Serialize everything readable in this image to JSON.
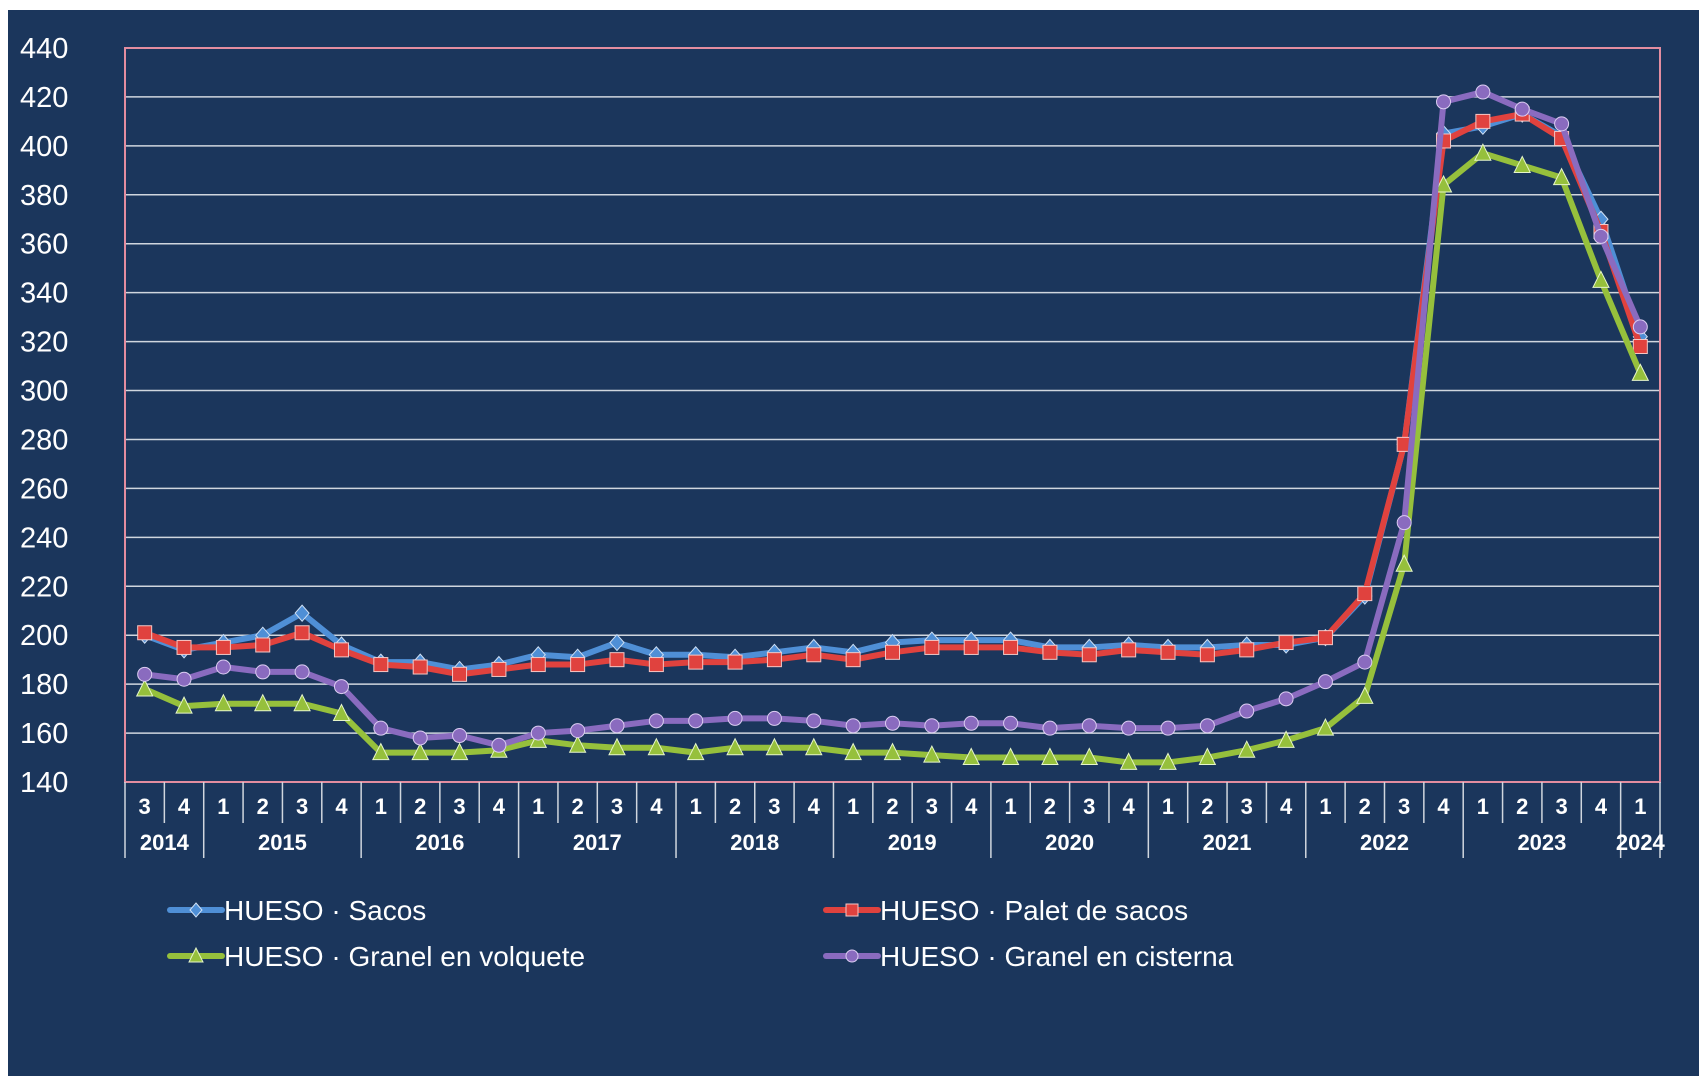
{
  "chart_data": {
    "type": "line",
    "title": "",
    "xlabel": "",
    "ylabel": "",
    "ylim": [
      140,
      440
    ],
    "yticks": [
      140,
      160,
      180,
      200,
      220,
      240,
      260,
      280,
      300,
      320,
      340,
      360,
      380,
      400,
      420,
      440
    ],
    "grid": true,
    "legend_position": "bottom",
    "x": [
      "2014-3",
      "2014-4",
      "2015-1",
      "2015-2",
      "2015-3",
      "2015-4",
      "2016-1",
      "2016-2",
      "2016-3",
      "2016-4",
      "2017-1",
      "2017-2",
      "2017-3",
      "2017-4",
      "2018-1",
      "2018-2",
      "2018-3",
      "2018-4",
      "2019-1",
      "2019-2",
      "2019-3",
      "2019-4",
      "2020-1",
      "2020-2",
      "2020-3",
      "2020-4",
      "2021-1",
      "2021-2",
      "2021-3",
      "2021-4",
      "2022-1",
      "2022-2",
      "2022-3",
      "2022-4",
      "2023-1",
      "2023-2",
      "2023-3",
      "2023-4",
      "2024-1"
    ],
    "quarter_labels": [
      "3",
      "4",
      "1",
      "2",
      "3",
      "4",
      "1",
      "2",
      "3",
      "4",
      "1",
      "2",
      "3",
      "4",
      "1",
      "2",
      "3",
      "4",
      "1",
      "2",
      "3",
      "4",
      "1",
      "2",
      "3",
      "4",
      "1",
      "2",
      "3",
      "4",
      "1",
      "2",
      "3",
      "4",
      "1",
      "2",
      "3",
      "4",
      "1"
    ],
    "year_groups": [
      {
        "year": "2014",
        "count": 2
      },
      {
        "year": "2015",
        "count": 4
      },
      {
        "year": "2016",
        "count": 4
      },
      {
        "year": "2017",
        "count": 4
      },
      {
        "year": "2018",
        "count": 4
      },
      {
        "year": "2019",
        "count": 4
      },
      {
        "year": "2020",
        "count": 4
      },
      {
        "year": "2021",
        "count": 4
      },
      {
        "year": "2022",
        "count": 4
      },
      {
        "year": "2023",
        "count": 4
      },
      {
        "year": "2024",
        "count": 1
      }
    ],
    "series": [
      {
        "name": "HUESO · Sacos",
        "color": "#4f8fd6",
        "marker": "diamond",
        "values": [
          200,
          194,
          197,
          200,
          209,
          196,
          189,
          189,
          186,
          188,
          192,
          191,
          197,
          192,
          192,
          191,
          193,
          195,
          193,
          197,
          198,
          198,
          198,
          195,
          195,
          196,
          195,
          195,
          196,
          196,
          199,
          216,
          278,
          405,
          408,
          413,
          404,
          370,
          322
        ]
      },
      {
        "name": "HUESO · Palet de sacos",
        "color": "#e0423e",
        "marker": "square",
        "values": [
          201,
          195,
          195,
          196,
          201,
          194,
          188,
          187,
          184,
          186,
          188,
          188,
          190,
          188,
          189,
          189,
          190,
          192,
          190,
          193,
          195,
          195,
          195,
          193,
          192,
          194,
          193,
          192,
          194,
          197,
          199,
          217,
          278,
          402,
          410,
          413,
          403,
          365,
          318
        ]
      },
      {
        "name": "HUESO · Granel en volquete",
        "color": "#96c03c",
        "marker": "triangle",
        "values": [
          178,
          171,
          172,
          172,
          172,
          168,
          152,
          152,
          152,
          153,
          157,
          155,
          154,
          154,
          152,
          154,
          154,
          154,
          152,
          152,
          151,
          150,
          150,
          150,
          150,
          148,
          148,
          150,
          153,
          157,
          162,
          175,
          229,
          384,
          397,
          392,
          387,
          345,
          307
        ]
      },
      {
        "name": "HUESO · Granel en cisterna",
        "color": "#8a6bbf",
        "marker": "circle",
        "values": [
          184,
          182,
          187,
          185,
          185,
          179,
          162,
          158,
          159,
          155,
          160,
          161,
          163,
          165,
          165,
          166,
          166,
          165,
          163,
          164,
          163,
          164,
          164,
          162,
          163,
          162,
          162,
          163,
          169,
          174,
          181,
          189,
          246,
          418,
          422,
          415,
          409,
          363,
          326
        ]
      }
    ]
  }
}
